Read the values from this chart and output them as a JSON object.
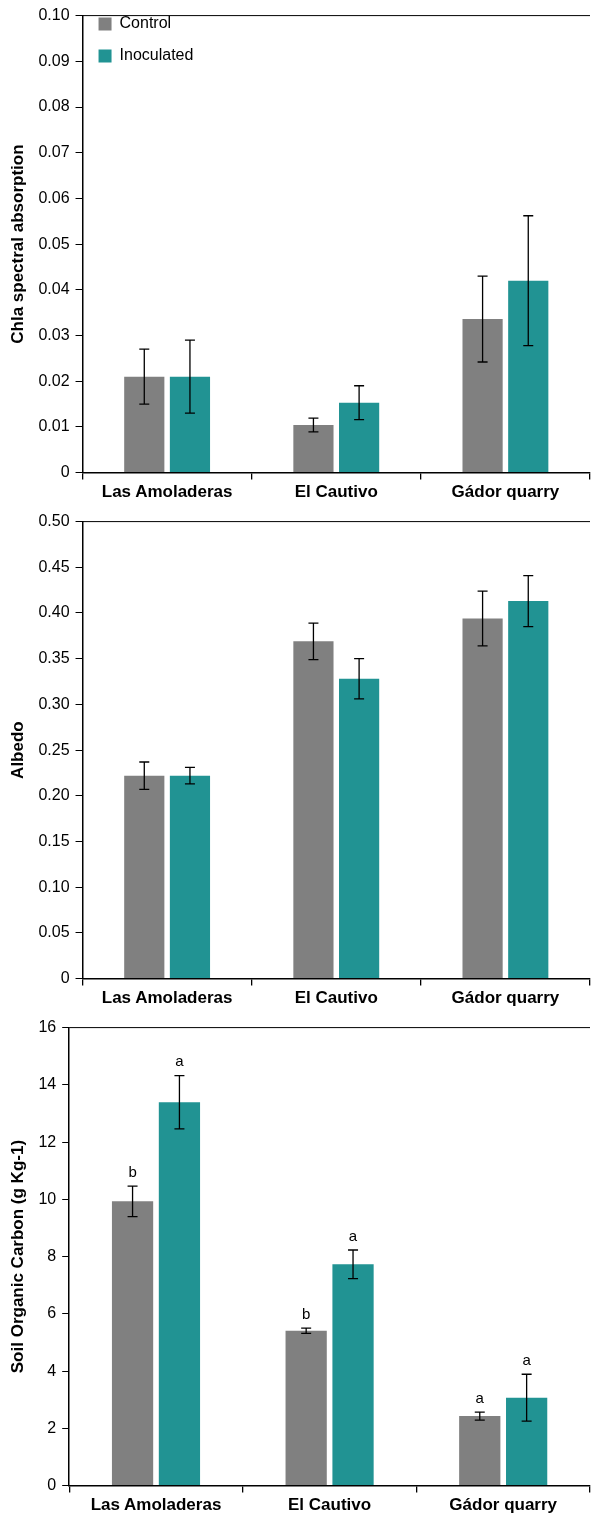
{
  "chart_data": [
    {
      "type": "bar",
      "categories": [
        "Las Amoladeras",
        "El Cautivo",
        "Gádor quarry"
      ],
      "ylabel": "Chla spectral absorption",
      "ylim": [
        0,
        0.1
      ],
      "yticks": [
        0,
        {
          "value": 0.01,
          "label": "0.01"
        },
        {
          "value": 0.02,
          "label": "0.02"
        },
        {
          "value": 0.03,
          "label": "0.03"
        },
        {
          "value": 0.04,
          "label": "0.04"
        },
        {
          "value": 0.05,
          "label": "0.05"
        },
        {
          "value": 0.06,
          "label": "0.06"
        },
        {
          "value": 0.07,
          "label": "0.07"
        },
        {
          "value": 0.08,
          "label": "0.08"
        },
        {
          "value": 0.09,
          "label": "0.09"
        },
        {
          "value": 0.1,
          "label": "0.10"
        }
      ],
      "grid": false,
      "legend": "top left",
      "series": [
        {
          "name": "Control",
          "color": "#808080",
          "values": [
            0.021,
            0.0104,
            0.0336
          ],
          "errors": [
            0.006,
            0.0015,
            0.0094
          ]
        },
        {
          "name": "Inoculated",
          "color": "#219393",
          "values": [
            0.021,
            0.0153,
            0.042
          ],
          "errors": [
            0.008,
            0.0037,
            0.0142
          ]
        }
      ]
    },
    {
      "type": "bar",
      "categories": [
        "Las Amoladeras",
        "El Cautivo",
        "Gádor quarry"
      ],
      "ylabel": "Albedo",
      "ylim": [
        0,
        0.5
      ],
      "yticks": [
        0,
        {
          "value": 0.05,
          "label": "0.05"
        },
        {
          "value": 0.1,
          "label": "0.10"
        },
        {
          "value": 0.15,
          "label": "0.15"
        },
        {
          "value": 0.2,
          "label": "0.20"
        },
        {
          "value": 0.25,
          "label": "0.25"
        },
        {
          "value": 0.3,
          "label": "0.30"
        },
        {
          "value": 0.35,
          "label": "0.35"
        },
        {
          "value": 0.4,
          "label": "0.40"
        },
        {
          "value": 0.45,
          "label": "0.45"
        },
        {
          "value": 0.5,
          "label": "0.50"
        }
      ],
      "grid": false,
      "legend": false,
      "series": [
        {
          "color": "#808080",
          "values": [
            0.222,
            0.369,
            0.394
          ],
          "errors": [
            0.015,
            0.02,
            0.03
          ]
        },
        {
          "color": "#219393",
          "values": [
            0.222,
            0.328,
            0.413
          ],
          "errors": [
            0.009,
            0.022,
            0.028
          ]
        }
      ]
    },
    {
      "type": "bar",
      "categories": [
        "Las Amoladeras",
        "El Cautivo",
        "Gádor quarry"
      ],
      "ylabel": "Soil Organic Carbon (g Kg-1)",
      "ylim": [
        0,
        16
      ],
      "yticks": [
        0,
        2,
        4,
        6,
        8,
        10,
        12,
        14,
        16
      ],
      "grid": false,
      "legend": false,
      "series": [
        {
          "color": "#808080",
          "values": [
            9.93,
            5.41,
            2.43
          ],
          "errors": [
            0.53,
            0.09,
            0.14
          ],
          "value_labels": [
            "b",
            "b",
            "a"
          ]
        },
        {
          "color": "#219393",
          "values": [
            13.39,
            7.73,
            3.07
          ],
          "errors": [
            0.93,
            0.5,
            0.82
          ],
          "value_labels": [
            "a",
            "a",
            "a"
          ]
        }
      ]
    }
  ]
}
